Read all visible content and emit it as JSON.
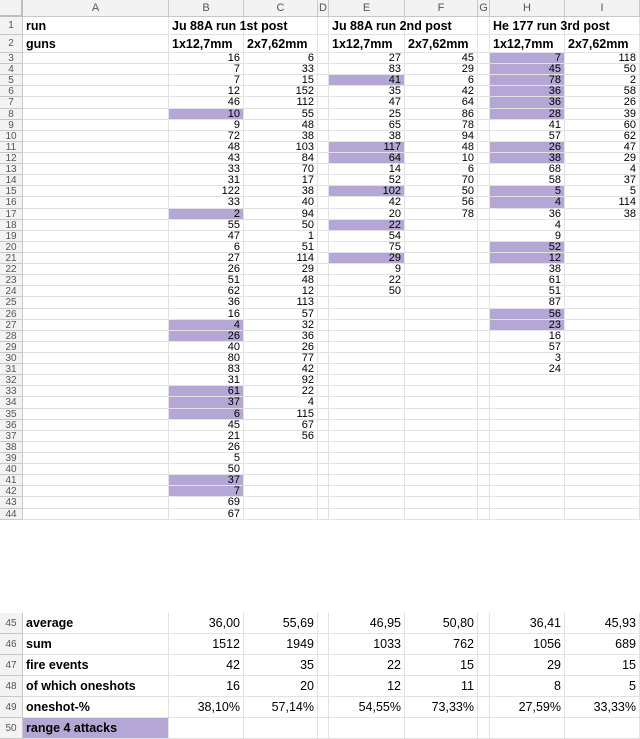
{
  "columns": [
    "A",
    "B",
    "C",
    "D",
    "E",
    "F",
    "G",
    "H",
    "I"
  ],
  "highlight_color": "#b4a7d6",
  "header_rows": {
    "run": {
      "A": "run",
      "B": "Ju 88A run 1st post",
      "E": "Ju 88A run 2nd post",
      "H": "He 177 run 3rd post"
    },
    "guns": {
      "A": "guns",
      "B": "1x12,7mm",
      "C": "2x7,62mm",
      "E": "1x12,7mm",
      "F": "2x7,62mm",
      "H": "1x12,7mm",
      "I": "2x7,62mm"
    }
  },
  "data": {
    "B": [
      "16",
      "7",
      "7",
      "12",
      "46",
      "10",
      "9",
      "72",
      "48",
      "43",
      "33",
      "31",
      "122",
      "33",
      "2",
      "55",
      "47",
      "6",
      "27",
      "26",
      "51",
      "62",
      "36",
      "16",
      "4",
      "26",
      "40",
      "80",
      "83",
      "31",
      "61",
      "37",
      "6",
      "45",
      "21",
      "26",
      "5",
      "50",
      "37",
      "7",
      "69",
      "67"
    ],
    "C": [
      "6",
      "33",
      "15",
      "152",
      "112",
      "55",
      "48",
      "38",
      "103",
      "84",
      "70",
      "17",
      "38",
      "40",
      "94",
      "50",
      "1",
      "51",
      "114",
      "29",
      "48",
      "12",
      "113",
      "57",
      "32",
      "36",
      "26",
      "77",
      "42",
      "92",
      "22",
      "4",
      "115",
      "67",
      "56"
    ],
    "E": [
      "27",
      "83",
      "41",
      "35",
      "47",
      "25",
      "65",
      "38",
      "117",
      "64",
      "14",
      "52",
      "102",
      "42",
      "20",
      "22",
      "54",
      "75",
      "29",
      "9",
      "22",
      "50"
    ],
    "F": [
      "45",
      "29",
      "6",
      "42",
      "64",
      "86",
      "78",
      "94",
      "48",
      "10",
      "6",
      "70",
      "50",
      "56",
      "78"
    ],
    "H": [
      "7",
      "45",
      "78",
      "36",
      "36",
      "28",
      "41",
      "57",
      "26",
      "38",
      "68",
      "58",
      "5",
      "4",
      "36",
      "4",
      "9",
      "52",
      "12",
      "38",
      "61",
      "51",
      "87",
      "56",
      "23",
      "16",
      "57",
      "3",
      "24"
    ],
    "I": [
      "118",
      "50",
      "2",
      "58",
      "26",
      "39",
      "60",
      "62",
      "47",
      "29",
      "4",
      "37",
      "5",
      "114",
      "38"
    ]
  },
  "highlights": {
    "B": [
      6,
      15,
      25,
      26,
      31,
      32,
      33,
      39,
      40
    ],
    "E": [
      3,
      9,
      10,
      13,
      16,
      19
    ],
    "H": [
      1,
      2,
      3,
      4,
      5,
      6,
      9,
      10,
      13,
      14,
      18,
      19,
      24,
      25
    ]
  },
  "summary": {
    "average": {
      "label": "average",
      "B": "36,00",
      "C": "55,69",
      "E": "46,95",
      "F": "50,80",
      "H": "36,41",
      "I": "45,93"
    },
    "sum": {
      "label": "sum",
      "B": "1512",
      "C": "1949",
      "E": "1033",
      "F": "762",
      "H": "1056",
      "I": "689"
    },
    "fire_events": {
      "label": "fire events",
      "B": "42",
      "C": "35",
      "E": "22",
      "F": "15",
      "H": "29",
      "I": "15"
    },
    "oneshots": {
      "label": "of which oneshots",
      "B": "16",
      "C": "20",
      "E": "12",
      "F": "11",
      "H": "8",
      "I": "5"
    },
    "oneshot_pct": {
      "label": "oneshot-%",
      "B": "38,10%",
      "C": "57,14%",
      "E": "54,55%",
      "F": "73,33%",
      "H": "27,59%",
      "I": "33,33%"
    },
    "range_note": {
      "label": "range 4 attacks"
    }
  }
}
